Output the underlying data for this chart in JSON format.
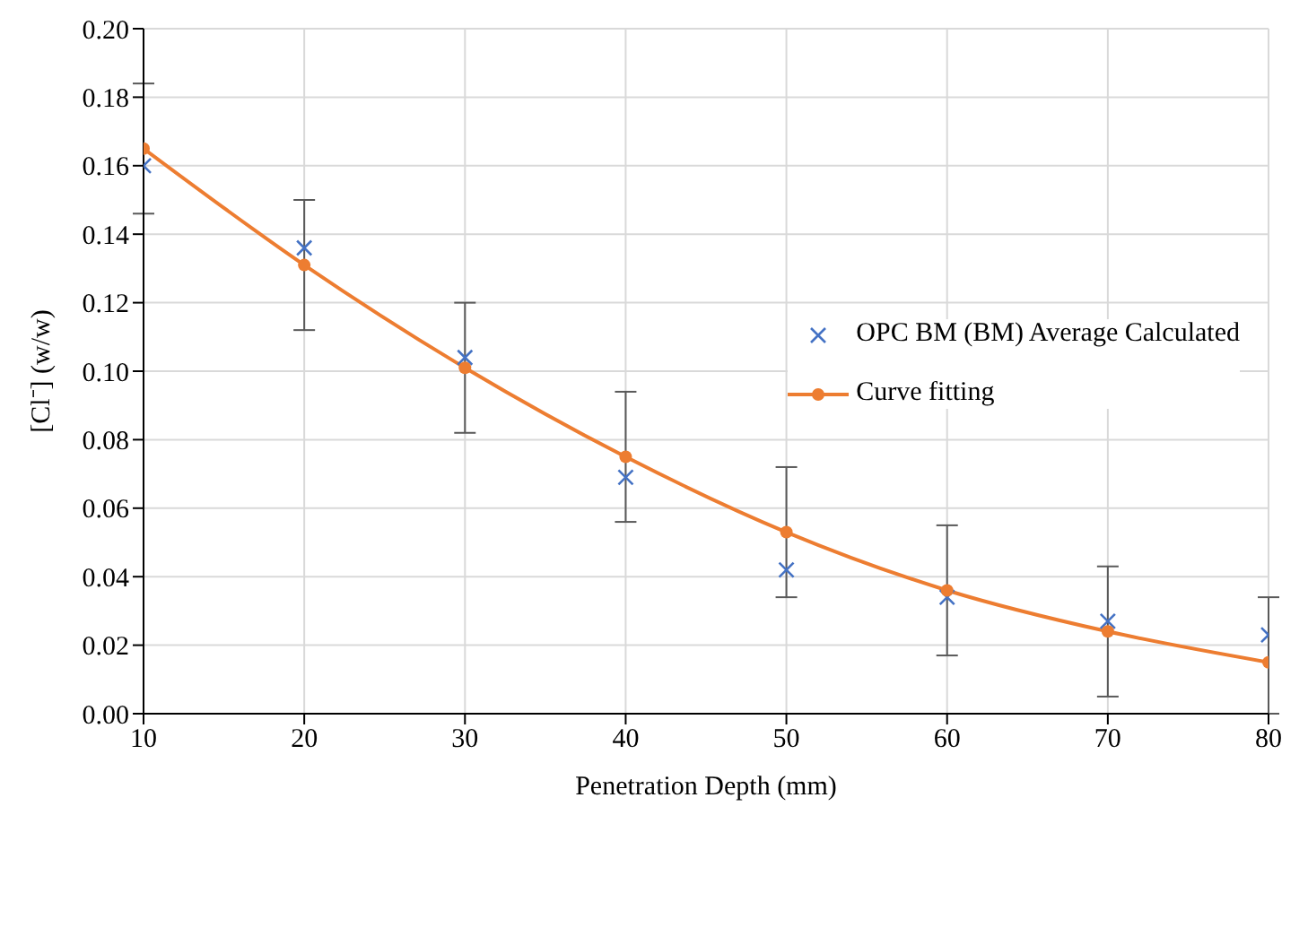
{
  "chart_data": {
    "type": "scatter",
    "xlabel": "Penetration Depth (mm)",
    "ylabel": "[Cl⁻] (w/w)",
    "x": [
      10,
      20,
      30,
      40,
      50,
      60,
      70,
      80
    ],
    "series": [
      {
        "name": "OPC BM (BM) Average Calculated",
        "type": "scatter",
        "marker": "cross",
        "color": "#4472c4",
        "values": [
          0.16,
          0.136,
          0.104,
          0.069,
          0.042,
          0.034,
          0.027,
          0.023
        ],
        "errors": [
          [
            0.146,
            0.184
          ],
          [
            0.112,
            0.15
          ],
          [
            0.082,
            0.12
          ],
          [
            0.056,
            0.094
          ],
          [
            0.034,
            0.072
          ],
          [
            0.017,
            0.055
          ],
          [
            0.005,
            0.043
          ],
          [
            0.0,
            0.034
          ]
        ]
      },
      {
        "name": "Curve fitting",
        "type": "line",
        "marker": "circle",
        "color": "#ed7d31",
        "values": [
          0.165,
          0.131,
          0.101,
          0.075,
          0.053,
          0.036,
          0.024,
          0.015
        ]
      }
    ],
    "xlim": [
      10,
      80
    ],
    "xticks": [
      10,
      20,
      30,
      40,
      50,
      60,
      70,
      80
    ],
    "ylim": [
      0,
      0.2
    ],
    "yticks": [
      {
        "value": 0,
        "label": "0.00"
      },
      {
        "value": 0.02,
        "label": "0.02"
      },
      {
        "value": 0.04,
        "label": "0.04"
      },
      {
        "value": 0.06,
        "label": "0.06"
      },
      {
        "value": 0.08,
        "label": "0.08"
      },
      {
        "value": 0.1,
        "label": "0.10"
      },
      {
        "value": 0.12,
        "label": "0.12"
      },
      {
        "value": 0.14,
        "label": "0.14"
      },
      {
        "value": 0.16,
        "label": "0.16"
      },
      {
        "value": 0.18,
        "label": "0.18"
      },
      {
        "value": 0.2,
        "label": "0.20"
      }
    ],
    "grid": true,
    "legend": "right"
  }
}
